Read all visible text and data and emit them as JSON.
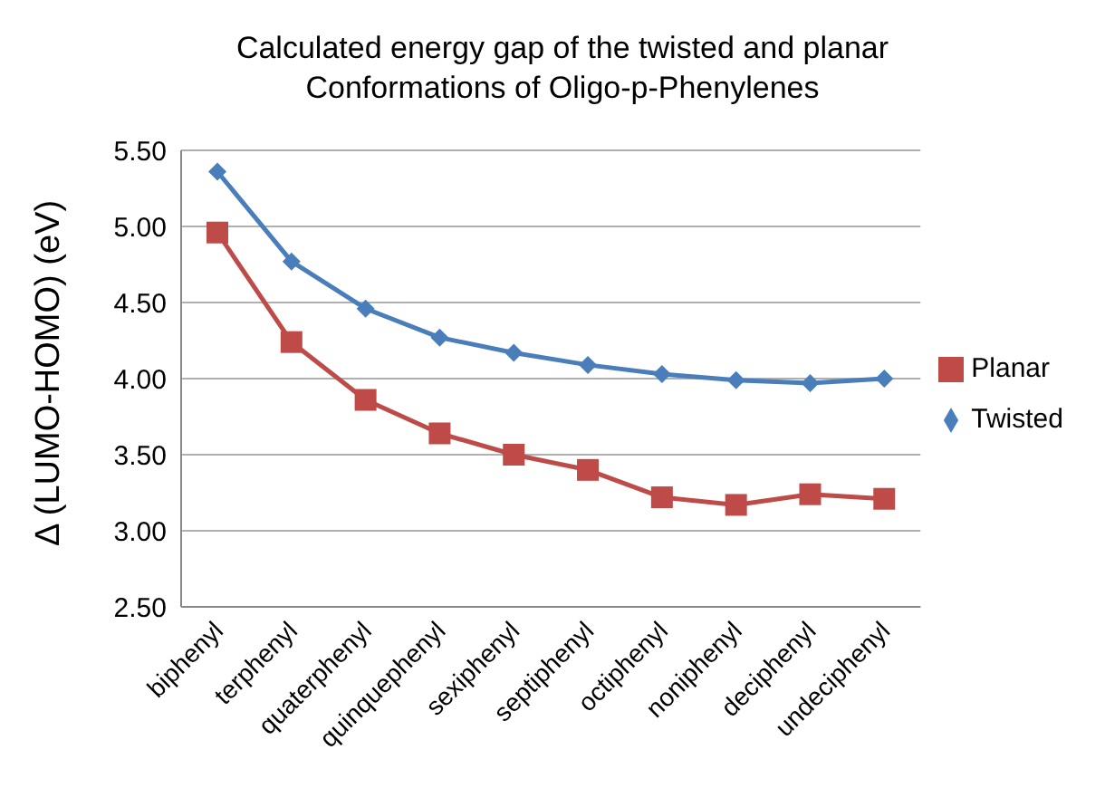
{
  "chart_data": {
    "type": "line",
    "title": "Calculated energy gap of the twisted and planar Conformations of Oligo-p-Phenylenes",
    "ylabel": "Δ (LUMO-HOMO) (eV)",
    "categories": [
      "biphenyl",
      "terphenyl",
      "quaterphenyl",
      "quinquephenyl",
      "sexiphenyl",
      "septiphenyl",
      "octiphenyl",
      "noniphenyl",
      "deciphenyl",
      "undeciphenyl"
    ],
    "series": [
      {
        "name": "Twisted",
        "color": "#4a7ebb",
        "marker": "diamond",
        "values": [
          5.36,
          4.77,
          4.46,
          4.27,
          4.17,
          4.09,
          4.03,
          3.99,
          3.97,
          4.0
        ]
      },
      {
        "name": "Planar",
        "color": "#be4b48",
        "marker": "square",
        "values": [
          4.96,
          4.24,
          3.86,
          3.64,
          3.5,
          3.4,
          3.22,
          3.17,
          3.24,
          3.21
        ]
      }
    ],
    "ylim": [
      2.5,
      5.5
    ],
    "yticks": [
      {
        "value": 2.5,
        "label": "2.50"
      },
      {
        "value": 3,
        "label": "3.00"
      },
      {
        "value": 3.5,
        "label": "3.50"
      },
      {
        "value": 4,
        "label": "4.00"
      },
      {
        "value": 4.5,
        "label": "4.50"
      },
      {
        "value": 5,
        "label": "5.00"
      },
      {
        "value": 5.5,
        "label": "5.50"
      }
    ],
    "grid": "y",
    "legend": "right"
  }
}
